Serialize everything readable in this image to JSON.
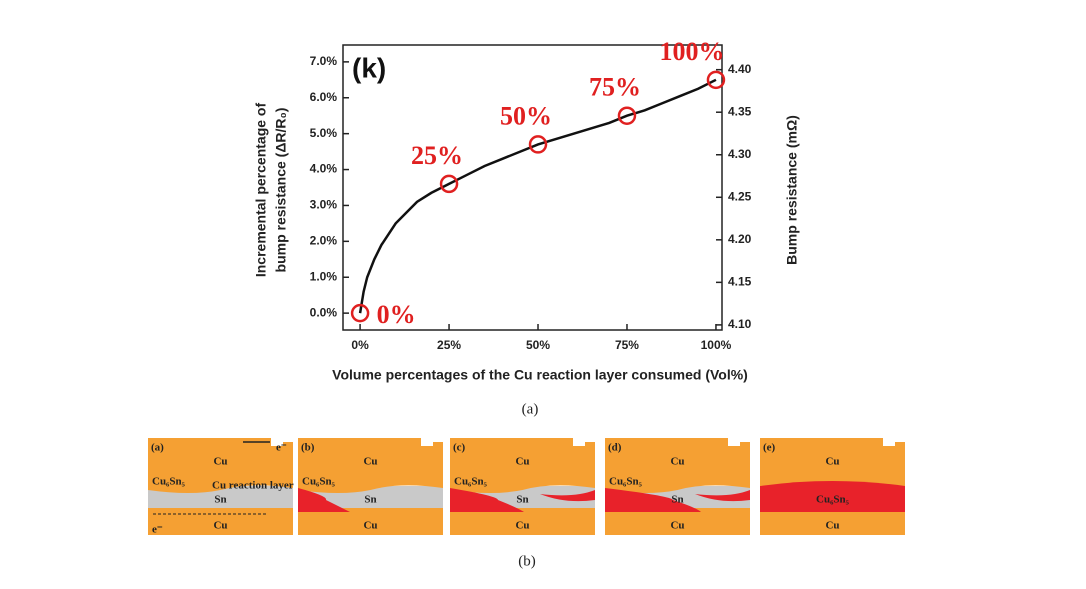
{
  "chart_data": {
    "type": "line",
    "panel_label": "(k)",
    "xlabel": "Volume percentages of the Cu reaction layer consumed (Vol%)",
    "ylabel": [
      "Incremental percentage of",
      "bump resistance (ΔR/R₀)"
    ],
    "y2label": "Bump resistance (mΩ)",
    "xlim": [
      -4.8,
      101.7
    ],
    "xticks": [
      {
        "value": 0,
        "label": "0%"
      },
      {
        "value": 25,
        "label": "25%"
      },
      {
        "value": 50,
        "label": "50%"
      },
      {
        "value": 75,
        "label": "75%"
      },
      {
        "value": 100,
        "label": "100%"
      }
    ],
    "ylim": [
      -0.47,
      7.47
    ],
    "yticks": [
      {
        "value": 0,
        "label": "0.0%"
      },
      {
        "value": 1,
        "label": "1.0%"
      },
      {
        "value": 2,
        "label": "2.0%"
      },
      {
        "value": 3,
        "label": "3.0%"
      },
      {
        "value": 4,
        "label": "4.0%"
      },
      {
        "value": 5,
        "label": "5.0%"
      },
      {
        "value": 6,
        "label": "6.0%"
      },
      {
        "value": 7,
        "label": "7.0%"
      }
    ],
    "y2lim": [
      4.094,
      4.429
    ],
    "y2ticks": [
      {
        "value": 4.1,
        "label": "4.10"
      },
      {
        "value": 4.15,
        "label": "4.15"
      },
      {
        "value": 4.2,
        "label": "4.20"
      },
      {
        "value": 4.25,
        "label": "4.25"
      },
      {
        "value": 4.3,
        "label": "4.30"
      },
      {
        "value": 4.35,
        "label": "4.35"
      },
      {
        "value": 4.4,
        "label": "4.40"
      }
    ],
    "series": [
      {
        "color": "#111111",
        "x": [
          0,
          1,
          2,
          4,
          6,
          8,
          10,
          13,
          16,
          20,
          25,
          30,
          35,
          40,
          45,
          50,
          55,
          60,
          65,
          70,
          75,
          80,
          85,
          90,
          95,
          100
        ],
        "values": [
          0,
          0.6,
          1.0,
          1.5,
          1.9,
          2.2,
          2.5,
          2.8,
          3.1,
          3.35,
          3.6,
          3.85,
          4.1,
          4.3,
          4.5,
          4.7,
          4.85,
          5.0,
          5.15,
          5.3,
          5.5,
          5.65,
          5.85,
          6.05,
          6.25,
          6.5
        ]
      }
    ],
    "markers": {
      "color": "#e02020",
      "x": [
        0,
        25,
        50,
        75,
        100
      ],
      "values": [
        0,
        3.6,
        4.7,
        5.5,
        6.5
      ],
      "labels": [
        "0%",
        "25%",
        "50%",
        "75%",
        "100%"
      ]
    },
    "caption": "(a)"
  },
  "figure_b": {
    "caption": "(b)",
    "panels": [
      {
        "label": "(a)",
        "top": "Cu",
        "bottom": "Cu",
        "imc": "Cu₆Sn₅",
        "sn": "Sn",
        "layer": "Cu reaction layer",
        "electron_top": "e⁻",
        "electron_bottom": "e⁻"
      },
      {
        "label": "(b)",
        "top": "Cu",
        "bottom": "Cu",
        "imc": "Cu₆Sn₅",
        "sn": "Sn"
      },
      {
        "label": "(c)",
        "top": "Cu",
        "bottom": "Cu",
        "imc": "Cu₆Sn₅",
        "sn": "Sn"
      },
      {
        "label": "(d)",
        "top": "Cu",
        "bottom": "Cu",
        "imc": "Cu₆Sn₅",
        "sn": "Sn"
      },
      {
        "label": "(e)",
        "top": "Cu",
        "bottom": "Cu",
        "imc": "Cu₆Sn₅"
      }
    ]
  }
}
